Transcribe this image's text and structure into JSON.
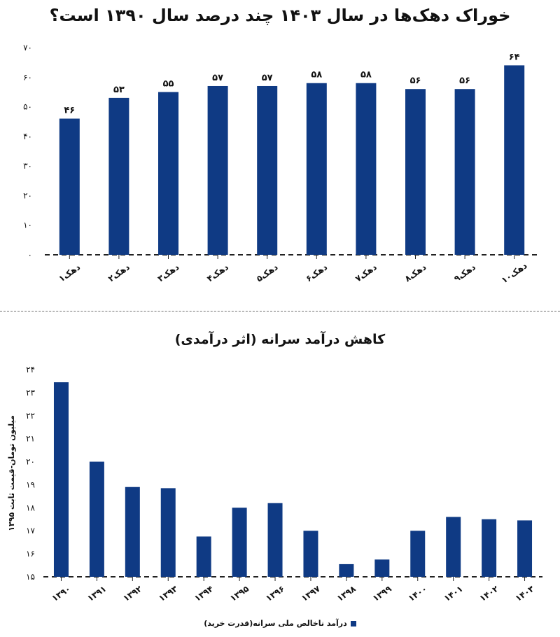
{
  "colors": {
    "bar": "#0f3a84",
    "axis": "#222222",
    "divider": "#6e6e6e"
  },
  "chart_data": [
    {
      "type": "bar",
      "title": "خوراک دهک‌ها در سال ۱۴۰۳ چند درصد سال ۱۳۹۰ است؟",
      "categories": [
        "دهک۱",
        "دهک۲",
        "دهک۳",
        "دهک۴",
        "دهک۵",
        "دهک۶",
        "دهک۷",
        "دهک۸",
        "دهک۹",
        "دهک۱۰"
      ],
      "values": [
        46,
        53,
        55,
        57,
        57,
        58,
        58,
        56,
        56,
        64
      ],
      "value_labels": [
        "۴۶",
        "۵۳",
        "۵۵",
        "۵۷",
        "۵۷",
        "۵۸",
        "۵۸",
        "۵۶",
        "۵۶",
        "۶۴"
      ],
      "ylim": [
        0,
        70
      ],
      "yticks": [
        0,
        10,
        20,
        30,
        40,
        50,
        60,
        70
      ],
      "ytick_labels": [
        "۰",
        "۱۰",
        "۲۰",
        "۳۰",
        "۴۰",
        "۵۰",
        "۶۰",
        "۷۰"
      ],
      "xlabel": "",
      "ylabel": "",
      "grid": false
    },
    {
      "type": "bar",
      "title": "کاهش درآمد سرانه (اثر درآمدی)",
      "categories": [
        "۱۳۹۰",
        "۱۳۹۱",
        "۱۳۹۲",
        "۱۳۹۳",
        "۱۳۹۴",
        "۱۳۹۵",
        "۱۳۹۶",
        "۱۳۹۷",
        "۱۳۹۸",
        "۱۳۹۹",
        "۱۴۰۰",
        "۱۴۰۱",
        "۱۴۰۲",
        "۱۴۰۳"
      ],
      "series": [
        {
          "name": "درآمد ناخالص ملی سرانه(قدرت خرید)",
          "values": [
            23.45,
            20.0,
            18.9,
            18.85,
            16.75,
            18.0,
            18.2,
            17.0,
            15.55,
            15.75,
            17.0,
            17.6,
            17.5,
            17.45
          ]
        }
      ],
      "ylim": [
        15,
        24
      ],
      "yticks": [
        15,
        16,
        17,
        18,
        19,
        20,
        21,
        22,
        23,
        24
      ],
      "ytick_labels": [
        "۱۵",
        "۱۶",
        "۱۷",
        "۱۸",
        "۱۹",
        "۲۰",
        "۲۱",
        "۲۲",
        "۲۳",
        "۲۴"
      ],
      "xlabel": "",
      "ylabel": "میلیون تومان-قیمت ثابت ۱۳۹۵",
      "legend_position": "bottom-center",
      "grid": false
    }
  ]
}
